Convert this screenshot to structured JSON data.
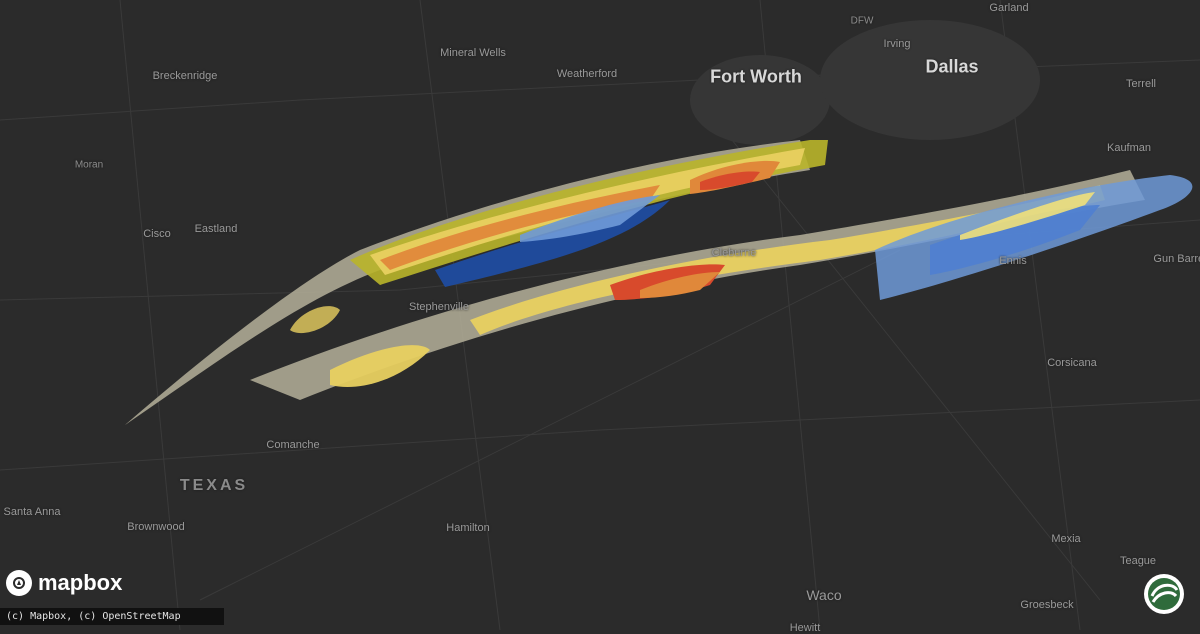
{
  "cities": [
    {
      "name": "Garland",
      "size": "normal"
    },
    {
      "name": "DFW",
      "size": "small"
    },
    {
      "name": "Irving",
      "size": "normal"
    },
    {
      "name": "Dallas",
      "size": "big"
    },
    {
      "name": "Fort Worth",
      "size": "big"
    },
    {
      "name": "Terrell",
      "size": "normal"
    },
    {
      "name": "Kaufman",
      "size": "normal"
    },
    {
      "name": "Mineral Wells",
      "size": "normal"
    },
    {
      "name": "Weatherford",
      "size": "normal"
    },
    {
      "name": "Breckenridge",
      "size": "normal"
    },
    {
      "name": "Moran",
      "size": "small"
    },
    {
      "name": "Cisco",
      "size": "normal"
    },
    {
      "name": "Eastland",
      "size": "normal"
    },
    {
      "name": "Stephenville",
      "size": "normal"
    },
    {
      "name": "Cleburne",
      "size": "normal"
    },
    {
      "name": "Ennis",
      "size": "normal"
    },
    {
      "name": "Gun Barrel",
      "size": "normal"
    },
    {
      "name": "Corsicana",
      "size": "normal"
    },
    {
      "name": "Comanche",
      "size": "normal"
    },
    {
      "name": "TEXAS",
      "size": "state"
    },
    {
      "name": "Santa Anna",
      "size": "normal"
    },
    {
      "name": "Brownwood",
      "size": "normal"
    },
    {
      "name": "Hamilton",
      "size": "normal"
    },
    {
      "name": "Mexia",
      "size": "normal"
    },
    {
      "name": "Teague",
      "size": "normal"
    },
    {
      "name": "Waco",
      "size": "big-ish"
    },
    {
      "name": "Groesbeck",
      "size": "normal"
    },
    {
      "name": "Hewitt",
      "size": "normal"
    }
  ],
  "overlay_colors": {
    "tan": "#b5b09a",
    "yellow": "#e8d060",
    "olive": "#b9b52a",
    "orange": "#e0883a",
    "red": "#d84a2c",
    "blue_light": "#6f9ad8",
    "blue_dark": "#1f4a9a"
  },
  "logo": {
    "text": "mapbox"
  },
  "attribution": "(c) Mapbox, (c) OpenStreetMap",
  "brand_badge_icon": "hail-swirl-icon"
}
